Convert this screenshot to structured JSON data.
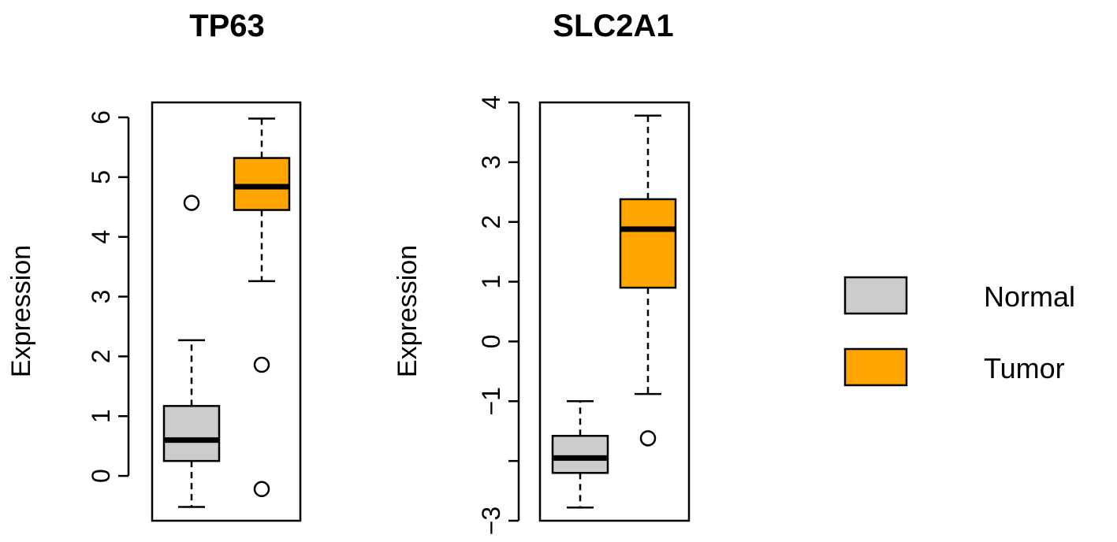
{
  "chart_data": [
    {
      "type": "boxplot",
      "title": "TP63",
      "ylabel": "Expression",
      "ylim": [
        -0.75,
        6.25
      ],
      "yticks": [
        0,
        1,
        2,
        3,
        4,
        5,
        6
      ],
      "grid": false,
      "series": [
        {
          "name": "Normal",
          "color": "#cccccc",
          "whisker_low": -0.52,
          "q1": 0.25,
          "median": 0.6,
          "q3": 1.17,
          "whisker_high": 2.27,
          "outliers": [
            4.57
          ]
        },
        {
          "name": "Tumor",
          "color": "#ffa500",
          "whisker_low": 3.26,
          "q1": 4.45,
          "median": 4.84,
          "q3": 5.32,
          "whisker_high": 5.98,
          "outliers": [
            1.86,
            -0.22
          ]
        }
      ]
    },
    {
      "type": "boxplot",
      "title": "SLC2A1",
      "ylabel": "Expression",
      "ylim": [
        -3.0,
        4.0
      ],
      "yticks": [
        -3,
        -2,
        -1,
        0,
        1,
        2,
        3,
        4
      ],
      "yticklabels": [
        "−3",
        "",
        "−1",
        "0",
        "1",
        "2",
        "3",
        "4"
      ],
      "grid": false,
      "series": [
        {
          "name": "Normal",
          "color": "#cccccc",
          "whisker_low": -2.78,
          "q1": -2.2,
          "median": -1.95,
          "q3": -1.58,
          "whisker_high": -1.0,
          "outliers": []
        },
        {
          "name": "Tumor",
          "color": "#ffa500",
          "whisker_low": -0.88,
          "q1": 0.9,
          "median": 1.88,
          "q3": 2.38,
          "whisker_high": 3.78,
          "outliers": [
            -1.62
          ]
        }
      ]
    }
  ],
  "legend": {
    "placement": "right",
    "items": [
      {
        "label": "Normal",
        "color": "#cccccc"
      },
      {
        "label": "Tumor",
        "color": "#ffa500"
      }
    ]
  }
}
